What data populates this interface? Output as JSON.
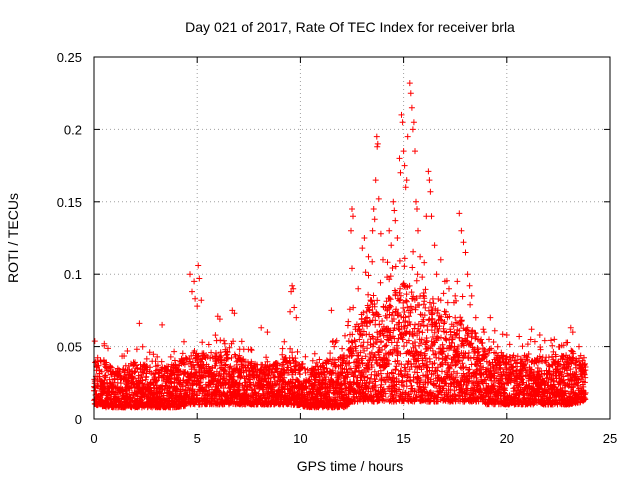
{
  "chart_data": {
    "type": "scatter",
    "title": "Day 021 of 2017, Rate Of TEC Index for receiver brla",
    "xlabel": "GPS time / hours",
    "ylabel": "ROTI / TECUs",
    "xlim": [
      0,
      25
    ],
    "ylim": [
      0,
      0.25
    ],
    "xticks": [
      0,
      5,
      10,
      15,
      20,
      25
    ],
    "xtick_labels": [
      "0",
      "5",
      "10",
      "15",
      "20",
      "25"
    ],
    "yticks": [
      0,
      0.05,
      0.1,
      0.15,
      0.2,
      0.25
    ],
    "ytick_labels": [
      "0",
      "0.05",
      "0.1",
      "0.15",
      "0.2",
      "0.25"
    ],
    "grid": true,
    "marker": "+",
    "series": [
      {
        "name": "ROTI",
        "color": "#ff0000",
        "note": "dense band of points every 30 s from 0 to ~23.8 h; baseline mostly 0.005-0.05 TECU/min, enhanced scintillation activity ~12.3-18.5 h",
        "band_profile": {
          "hours": [
            0.0,
            0.5,
            1.0,
            2.0,
            3.0,
            4.0,
            4.8,
            5.5,
            6.5,
            7.5,
            8.5,
            9.5,
            10.5,
            11.5,
            12.2,
            12.4,
            13.0,
            13.5,
            14.0,
            14.5,
            15.0,
            15.5,
            16.0,
            16.5,
            17.0,
            17.5,
            18.0,
            18.5,
            19.0,
            20.0,
            21.0,
            22.0,
            23.0,
            23.8
          ],
          "band_upper": [
            0.045,
            0.04,
            0.035,
            0.04,
            0.038,
            0.038,
            0.048,
            0.046,
            0.047,
            0.04,
            0.037,
            0.045,
            0.034,
            0.042,
            0.045,
            0.06,
            0.075,
            0.085,
            0.08,
            0.088,
            0.095,
            0.09,
            0.085,
            0.08,
            0.075,
            0.07,
            0.065,
            0.06,
            0.05,
            0.045,
            0.045,
            0.043,
            0.045,
            0.04
          ],
          "band_lower": [
            0.01,
            0.008,
            0.008,
            0.008,
            0.008,
            0.008,
            0.01,
            0.01,
            0.01,
            0.01,
            0.01,
            0.01,
            0.008,
            0.008,
            0.008,
            0.012,
            0.012,
            0.012,
            0.012,
            0.012,
            0.012,
            0.012,
            0.012,
            0.012,
            0.012,
            0.012,
            0.012,
            0.012,
            0.01,
            0.01,
            0.01,
            0.01,
            0.01,
            0.012
          ]
        },
        "notable_points": [
          {
            "x": 0.5,
            "y": 0.052
          },
          {
            "x": 2.2,
            "y": 0.066
          },
          {
            "x": 3.3,
            "y": 0.065
          },
          {
            "x": 4.65,
            "y": 0.1
          },
          {
            "x": 4.75,
            "y": 0.088
          },
          {
            "x": 4.85,
            "y": 0.095
          },
          {
            "x": 5.05,
            "y": 0.106
          },
          {
            "x": 5.1,
            "y": 0.097
          },
          {
            "x": 5.2,
            "y": 0.082
          },
          {
            "x": 5.0,
            "y": 0.078
          },
          {
            "x": 4.9,
            "y": 0.083
          },
          {
            "x": 6.0,
            "y": 0.071
          },
          {
            "x": 6.1,
            "y": 0.069
          },
          {
            "x": 6.7,
            "y": 0.075
          },
          {
            "x": 6.8,
            "y": 0.073
          },
          {
            "x": 8.1,
            "y": 0.063
          },
          {
            "x": 8.4,
            "y": 0.06
          },
          {
            "x": 9.6,
            "y": 0.092
          },
          {
            "x": 9.65,
            "y": 0.09
          },
          {
            "x": 9.55,
            "y": 0.088
          },
          {
            "x": 9.7,
            "y": 0.077
          },
          {
            "x": 9.5,
            "y": 0.074
          },
          {
            "x": 9.8,
            "y": 0.07
          },
          {
            "x": 11.5,
            "y": 0.075
          },
          {
            "x": 12.5,
            "y": 0.145
          },
          {
            "x": 12.55,
            "y": 0.14
          },
          {
            "x": 12.45,
            "y": 0.13
          },
          {
            "x": 12.5,
            "y": 0.104
          },
          {
            "x": 12.8,
            "y": 0.09
          },
          {
            "x": 13.0,
            "y": 0.118
          },
          {
            "x": 13.1,
            "y": 0.125
          },
          {
            "x": 13.3,
            "y": 0.112
          },
          {
            "x": 13.5,
            "y": 0.13
          },
          {
            "x": 13.55,
            "y": 0.145
          },
          {
            "x": 13.7,
            "y": 0.195
          },
          {
            "x": 13.75,
            "y": 0.19
          },
          {
            "x": 13.72,
            "y": 0.188
          },
          {
            "x": 13.65,
            "y": 0.165
          },
          {
            "x": 13.8,
            "y": 0.152
          },
          {
            "x": 13.6,
            "y": 0.138
          },
          {
            "x": 13.9,
            "y": 0.128
          },
          {
            "x": 14.0,
            "y": 0.11
          },
          {
            "x": 14.2,
            "y": 0.098
          },
          {
            "x": 14.3,
            "y": 0.13
          },
          {
            "x": 14.4,
            "y": 0.12
          },
          {
            "x": 14.5,
            "y": 0.15
          },
          {
            "x": 14.55,
            "y": 0.144
          },
          {
            "x": 14.6,
            "y": 0.137
          },
          {
            "x": 14.7,
            "y": 0.125
          },
          {
            "x": 14.8,
            "y": 0.18
          },
          {
            "x": 14.85,
            "y": 0.17
          },
          {
            "x": 14.9,
            "y": 0.21
          },
          {
            "x": 14.95,
            "y": 0.205
          },
          {
            "x": 15.0,
            "y": 0.185
          },
          {
            "x": 15.05,
            "y": 0.175
          },
          {
            "x": 15.1,
            "y": 0.16
          },
          {
            "x": 15.15,
            "y": 0.165
          },
          {
            "x": 15.2,
            "y": 0.195
          },
          {
            "x": 15.3,
            "y": 0.232
          },
          {
            "x": 15.35,
            "y": 0.225
          },
          {
            "x": 15.4,
            "y": 0.215
          },
          {
            "x": 15.45,
            "y": 0.2
          },
          {
            "x": 15.5,
            "y": 0.205
          },
          {
            "x": 15.55,
            "y": 0.185
          },
          {
            "x": 15.6,
            "y": 0.15
          },
          {
            "x": 15.65,
            "y": 0.145
          },
          {
            "x": 15.7,
            "y": 0.13
          },
          {
            "x": 15.8,
            "y": 0.112
          },
          {
            "x": 15.9,
            "y": 0.098
          },
          {
            "x": 16.0,
            "y": 0.108
          },
          {
            "x": 16.1,
            "y": 0.14
          },
          {
            "x": 16.2,
            "y": 0.171
          },
          {
            "x": 16.25,
            "y": 0.165
          },
          {
            "x": 16.3,
            "y": 0.157
          },
          {
            "x": 16.35,
            "y": 0.14
          },
          {
            "x": 16.5,
            "y": 0.12
          },
          {
            "x": 16.6,
            "y": 0.1
          },
          {
            "x": 16.8,
            "y": 0.11
          },
          {
            "x": 17.0,
            "y": 0.095
          },
          {
            "x": 17.2,
            "y": 0.09
          },
          {
            "x": 17.5,
            "y": 0.085
          },
          {
            "x": 17.6,
            "y": 0.095
          },
          {
            "x": 17.7,
            "y": 0.142
          },
          {
            "x": 17.8,
            "y": 0.13
          },
          {
            "x": 17.9,
            "y": 0.122
          },
          {
            "x": 18.0,
            "y": 0.115
          },
          {
            "x": 18.1,
            "y": 0.1
          },
          {
            "x": 18.2,
            "y": 0.092
          },
          {
            "x": 18.3,
            "y": 0.085
          },
          {
            "x": 18.5,
            "y": 0.07
          },
          {
            "x": 19.2,
            "y": 0.07
          },
          {
            "x": 20.0,
            "y": 0.058
          },
          {
            "x": 21.2,
            "y": 0.062
          },
          {
            "x": 21.6,
            "y": 0.058
          },
          {
            "x": 22.3,
            "y": 0.055
          },
          {
            "x": 23.1,
            "y": 0.063
          },
          {
            "x": 23.2,
            "y": 0.06
          },
          {
            "x": 23.5,
            "y": 0.05
          }
        ]
      }
    ]
  }
}
